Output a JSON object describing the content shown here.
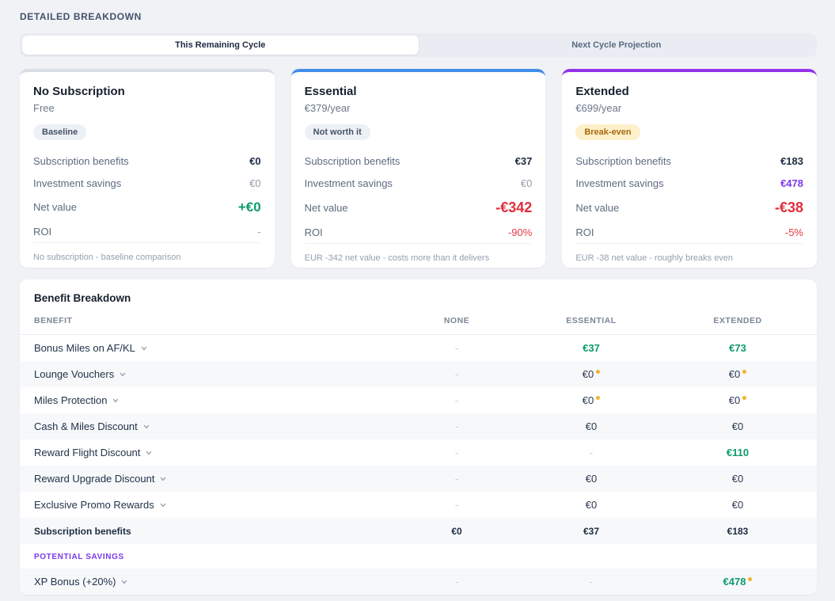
{
  "page_title": "DETAILED BREAKDOWN",
  "tabs": [
    {
      "label": "This Remaining Cycle",
      "active": true
    },
    {
      "label": "Next Cycle Projection",
      "active": false
    }
  ],
  "cards": [
    {
      "name": "No Subscription",
      "price": "Free",
      "badge": {
        "label": "Baseline",
        "style": "gray"
      },
      "accent": "#d9dee5",
      "stats": [
        {
          "label": "Subscription benefits",
          "value": "€0",
          "style": "dark"
        },
        {
          "label": "Investment savings",
          "value": "€0",
          "style": "muted"
        },
        {
          "label": "Net value",
          "value": "+€0",
          "style": "green-xl"
        },
        {
          "label": "ROI",
          "value": "-",
          "style": "muted"
        }
      ],
      "footnote": "No subscription - baseline comparison"
    },
    {
      "name": "Essential",
      "price": "€379/year",
      "badge": {
        "label": "Not worth it",
        "style": "gray"
      },
      "accent": "#3f8de8",
      "stats": [
        {
          "label": "Subscription benefits",
          "value": "€37",
          "style": "dark"
        },
        {
          "label": "Investment savings",
          "value": "€0",
          "style": "muted"
        },
        {
          "label": "Net value",
          "value": "-€342",
          "style": "red-xl"
        },
        {
          "label": "ROI",
          "value": "-90%",
          "style": "red"
        }
      ],
      "footnote": "EUR -342 net value - costs more than it delivers"
    },
    {
      "name": "Extended",
      "price": "€699/year",
      "badge": {
        "label": "Break-even",
        "style": "amber"
      },
      "accent": "#9333ea",
      "stats": [
        {
          "label": "Subscription benefits",
          "value": "€183",
          "style": "dark"
        },
        {
          "label": "Investment savings",
          "value": "€478",
          "style": "purple"
        },
        {
          "label": "Net value",
          "value": "-€38",
          "style": "red-xl"
        },
        {
          "label": "ROI",
          "value": "-5%",
          "style": "red"
        }
      ],
      "footnote": "EUR -38 net value - roughly breaks even"
    }
  ],
  "table": {
    "title": "Benefit Breakdown",
    "columns": [
      "BENEFIT",
      "NONE",
      "ESSENTIAL",
      "EXTENDED"
    ],
    "rows": [
      {
        "label": "Bonus Miles on AF/KL",
        "expandable": true,
        "cells": [
          {
            "text": "-",
            "style": "dash"
          },
          {
            "text": "€37",
            "style": "green"
          },
          {
            "text": "€73",
            "style": "green"
          }
        ]
      },
      {
        "label": "Lounge Vouchers",
        "expandable": true,
        "cells": [
          {
            "text": "-",
            "style": "dash"
          },
          {
            "text": "€0",
            "style": "dark",
            "dot": true
          },
          {
            "text": "€0",
            "style": "dark",
            "dot": true
          }
        ]
      },
      {
        "label": "Miles Protection",
        "expandable": true,
        "cells": [
          {
            "text": "-",
            "style": "dash"
          },
          {
            "text": "€0",
            "style": "dark",
            "dot": true
          },
          {
            "text": "€0",
            "style": "dark",
            "dot": true
          }
        ]
      },
      {
        "label": "Cash & Miles Discount",
        "expandable": true,
        "cells": [
          {
            "text": "-",
            "style": "dash"
          },
          {
            "text": "€0",
            "style": "dark"
          },
          {
            "text": "€0",
            "style": "dark"
          }
        ]
      },
      {
        "label": "Reward Flight Discount",
        "expandable": true,
        "cells": [
          {
            "text": "-",
            "style": "dash"
          },
          {
            "text": "-",
            "style": "dash"
          },
          {
            "text": "€110",
            "style": "green"
          }
        ]
      },
      {
        "label": "Reward Upgrade Discount",
        "expandable": true,
        "cells": [
          {
            "text": "-",
            "style": "dash"
          },
          {
            "text": "€0",
            "style": "dark"
          },
          {
            "text": "€0",
            "style": "dark"
          }
        ]
      },
      {
        "label": "Exclusive Promo Rewards",
        "expandable": true,
        "cells": [
          {
            "text": "-",
            "style": "dash"
          },
          {
            "text": "€0",
            "style": "dark"
          },
          {
            "text": "€0",
            "style": "dark"
          }
        ]
      },
      {
        "label": "Subscription benefits",
        "summary": true,
        "cells": [
          {
            "text": "€0",
            "style": "summary"
          },
          {
            "text": "€37",
            "style": "summary"
          },
          {
            "text": "€183",
            "style": "summary"
          }
        ]
      }
    ],
    "section_label": "POTENTIAL SAVINGS",
    "section_rows": [
      {
        "label": "XP Bonus (+20%)",
        "expandable": true,
        "cells": [
          {
            "text": "-",
            "style": "dash"
          },
          {
            "text": "-",
            "style": "dash"
          },
          {
            "text": "€478",
            "style": "green",
            "dot": true
          }
        ]
      }
    ]
  },
  "colors": {
    "accent_blue": "#3f8de8",
    "accent_purple": "#9333ea",
    "green": "#0d9b6c",
    "red": "#e12d3d",
    "purple": "#7c3aed",
    "dot_yellow": "#f0b42c"
  }
}
